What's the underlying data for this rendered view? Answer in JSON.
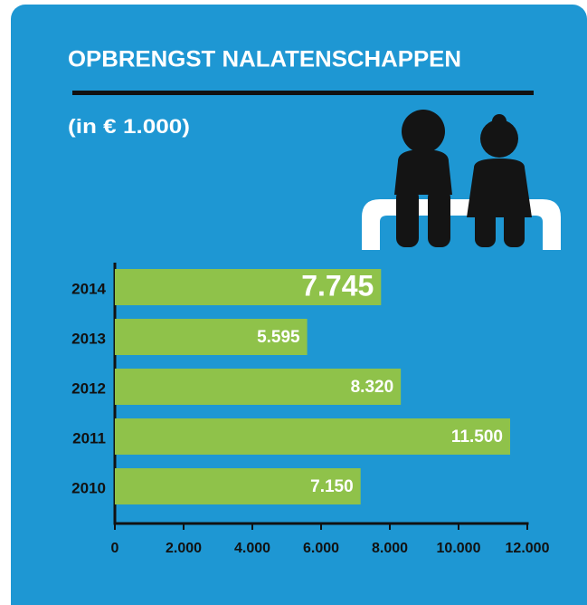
{
  "chart_data": {
    "type": "bar",
    "orientation": "horizontal",
    "title": "OPBRENGST NALATENSCHAPPEN",
    "subtitle": "(in € 1.000)",
    "categories": [
      "2014",
      "2013",
      "2012",
      "2011",
      "2010"
    ],
    "values": [
      7745,
      5595,
      8320,
      11500,
      7150
    ],
    "value_labels": [
      "7.745",
      "5.595",
      "8.320",
      "11.500",
      "7.150"
    ],
    "color": "#8fc24a",
    "xlim": [
      0,
      12000
    ],
    "xticks": [
      0,
      {
        "value": 2000,
        "label": "2.000"
      },
      {
        "value": 4000,
        "label": "4.000"
      },
      {
        "value": 6000,
        "label": "6.000"
      },
      {
        "value": 8000,
        "label": "8.000"
      },
      {
        "value": 10000,
        "label": "10.000"
      },
      {
        "value": 12000,
        "label": "12.000"
      }
    ]
  }
}
